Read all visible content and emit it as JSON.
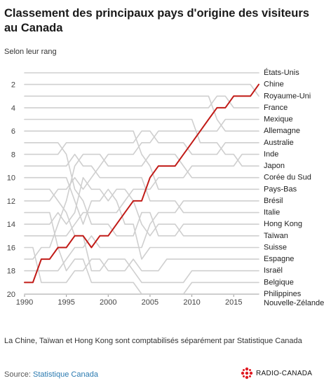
{
  "header": {
    "title": "Classement des principaux pays d'origine des visiteurs au Canada",
    "subtitle": "Selon leur rang"
  },
  "footer": {
    "note": "La Chine, Taïwan et Hong Kong sont comptabilisés séparément par Statistique Canada",
    "source_label": "Source:",
    "source_name": "Statistique Canada",
    "logo_text": "RADIO-CANADA"
  },
  "colors": {
    "highlight": "#c11b17",
    "muted": "#cfcfcf",
    "logo": "#e01a22"
  },
  "chart_data": {
    "type": "line",
    "title": "Classement des principaux pays d'origine des visiteurs au Canada",
    "subtitle": "Selon leur rang",
    "x_ticks": [
      1990,
      1995,
      2000,
      2005,
      2010,
      2015
    ],
    "xlim": [
      1990,
      2018
    ],
    "y_ticks": [
      2,
      4,
      6,
      8,
      10,
      12,
      14,
      16,
      18,
      20
    ],
    "ylim": [
      1,
      20
    ],
    "y_reversed": true,
    "grid": false,
    "years": [
      1990,
      1991,
      1992,
      1993,
      1994,
      1995,
      1996,
      1997,
      1998,
      1999,
      2000,
      2001,
      2002,
      2003,
      2004,
      2005,
      2006,
      2007,
      2008,
      2009,
      2010,
      2011,
      2012,
      2013,
      2014,
      2015,
      2016,
      2017,
      2018
    ],
    "highlight_series": "Chine",
    "series": [
      {
        "name": "États-Unis",
        "values": [
          1,
          1,
          1,
          1,
          1,
          1,
          1,
          1,
          1,
          1,
          1,
          1,
          1,
          1,
          1,
          1,
          1,
          1,
          1,
          1,
          1,
          1,
          1,
          1,
          1,
          1,
          1,
          1,
          1
        ]
      },
      {
        "name": "Chine",
        "values": [
          19,
          19,
          17,
          17,
          16,
          16,
          15,
          15,
          16,
          15,
          15,
          14,
          13,
          12,
          12,
          10,
          9,
          9,
          9,
          8,
          7,
          6,
          5,
          4,
          4,
          3,
          3,
          3,
          2
        ]
      },
      {
        "name": "Royaume-Uni",
        "values": [
          2,
          2,
          2,
          2,
          2,
          2,
          2,
          2,
          2,
          2,
          2,
          2,
          2,
          2,
          2,
          2,
          2,
          2,
          2,
          2,
          2,
          2,
          2,
          2,
          2,
          2,
          2,
          2,
          3
        ]
      },
      {
        "name": "France",
        "values": [
          4,
          4,
          4,
          4,
          4,
          4,
          4,
          4,
          4,
          4,
          4,
          4,
          4,
          4,
          4,
          4,
          4,
          4,
          4,
          4,
          4,
          4,
          4,
          3,
          3,
          4,
          4,
          4,
          4
        ]
      },
      {
        "name": "Mexique",
        "values": [
          12,
          12,
          12,
          12,
          11,
          11,
          10,
          11,
          10,
          9,
          8,
          8,
          8,
          8,
          7,
          7,
          6,
          6,
          6,
          6,
          6,
          6,
          6,
          6,
          5,
          5,
          5,
          5,
          5
        ]
      },
      {
        "name": "Allemagne",
        "values": [
          3,
          3,
          3,
          3,
          3,
          3,
          3,
          3,
          3,
          3,
          3,
          3,
          3,
          3,
          3,
          3,
          3,
          3,
          3,
          3,
          3,
          3,
          3,
          5,
          6,
          6,
          6,
          6,
          6
        ]
      },
      {
        "name": "Australie",
        "values": [
          8,
          8,
          8,
          8,
          8,
          7,
          7,
          7,
          7,
          7,
          7,
          7,
          7,
          7,
          6,
          6,
          7,
          7,
          7,
          7,
          8,
          8,
          8,
          8,
          7,
          7,
          7,
          7,
          7
        ]
      },
      {
        "name": "Inde",
        "values": [
          15,
          15,
          15,
          15,
          15,
          15,
          14,
          13,
          13,
          13,
          13,
          13,
          12,
          11,
          11,
          11,
          10,
          10,
          10,
          10,
          9,
          9,
          9,
          9,
          9,
          9,
          8,
          8,
          8
        ]
      },
      {
        "name": "Japon",
        "values": [
          5,
          5,
          5,
          5,
          5,
          5,
          5,
          5,
          5,
          5,
          5,
          5,
          5,
          5,
          5,
          5,
          5,
          5,
          5,
          5,
          5,
          7,
          7,
          7,
          8,
          8,
          9,
          9,
          9
        ]
      },
      {
        "name": "Corée du Sud",
        "values": [
          17,
          17,
          16,
          16,
          14,
          12,
          9,
          8,
          8,
          8,
          9,
          9,
          9,
          9,
          9,
          8,
          8,
          8,
          8,
          9,
          10,
          10,
          10,
          10,
          10,
          10,
          10,
          10,
          10
        ]
      },
      {
        "name": "Pays-Bas",
        "values": [
          6,
          6,
          6,
          6,
          6,
          6,
          6,
          6,
          6,
          6,
          6,
          6,
          6,
          6,
          8,
          9,
          11,
          11,
          11,
          11,
          11,
          11,
          11,
          11,
          11,
          11,
          11,
          11,
          11
        ]
      },
      {
        "name": "Brésil",
        "values": [
          18,
          18,
          18,
          18,
          18,
          17,
          16,
          16,
          15,
          16,
          16,
          16,
          16,
          16,
          16,
          14,
          13,
          13,
          13,
          12,
          12,
          12,
          12,
          12,
          12,
          12,
          12,
          12,
          12
        ]
      },
      {
        "name": "Italie",
        "values": [
          9,
          9,
          9,
          9,
          9,
          9,
          8,
          9,
          9,
          10,
          10,
          10,
          10,
          10,
          10,
          12,
          12,
          12,
          12,
          13,
          13,
          13,
          13,
          13,
          13,
          13,
          13,
          13,
          13
        ]
      },
      {
        "name": "Hong Kong",
        "values": [
          7,
          7,
          7,
          7,
          7,
          8,
          11,
          12,
          14,
          14,
          14,
          15,
          15,
          15,
          13,
          13,
          15,
          15,
          15,
          14,
          14,
          14,
          14,
          14,
          14,
          14,
          14,
          14,
          14
        ]
      },
      {
        "name": "Taïwan",
        "values": [
          14,
          14,
          14,
          14,
          13,
          14,
          13,
          10,
          11,
          11,
          12,
          11,
          11,
          12,
          14,
          15,
          14,
          14,
          14,
          15,
          15,
          15,
          15,
          15,
          15,
          15,
          15,
          15,
          15
        ]
      },
      {
        "name": "Suisse",
        "values": [
          10,
          10,
          10,
          10,
          10,
          10,
          12,
          14,
          12,
          12,
          11,
          12,
          14,
          14,
          17,
          16,
          16,
          16,
          16,
          16,
          16,
          16,
          16,
          16,
          16,
          16,
          16,
          16,
          16
        ]
      },
      {
        "name": "Espagne",
        "values": [
          16,
          16,
          19,
          19,
          19,
          19,
          18,
          18,
          17,
          17,
          18,
          18,
          18,
          17,
          18,
          18,
          18,
          17,
          17,
          17,
          17,
          17,
          17,
          17,
          17,
          17,
          17,
          17,
          17
        ]
      },
      {
        "name": "Israël",
        "values": [
          11,
          11,
          11,
          11,
          12,
          13,
          15,
          15,
          18,
          18,
          17,
          17,
          17,
          18,
          19,
          19,
          19,
          19,
          19,
          19,
          18,
          18,
          18,
          18,
          18,
          18,
          18,
          18,
          18
        ]
      },
      {
        "name": "Belgique",
        "values": [
          13,
          13,
          13,
          13,
          16,
          18,
          17,
          17,
          19,
          19,
          19,
          19,
          19,
          19,
          20,
          20,
          20,
          20,
          20,
          20,
          19,
          19,
          19,
          19,
          19,
          19,
          19,
          19,
          19
        ]
      },
      {
        "name": "Philippines",
        "values": [
          20,
          20,
          20,
          20,
          20,
          20,
          20,
          20,
          20,
          20,
          20,
          20,
          20,
          20,
          20,
          20,
          20,
          20,
          20,
          20,
          20,
          20,
          20,
          20,
          20,
          20,
          20,
          20,
          20
        ]
      },
      {
        "name": "Nouvelle-Zélande",
        "values": [
          20,
          20,
          20,
          20,
          20,
          20,
          20,
          20,
          20,
          20,
          20,
          20,
          20,
          20,
          20,
          20,
          20,
          20,
          20,
          20,
          20,
          20,
          20,
          20,
          20,
          20,
          20,
          20,
          20
        ]
      }
    ]
  }
}
